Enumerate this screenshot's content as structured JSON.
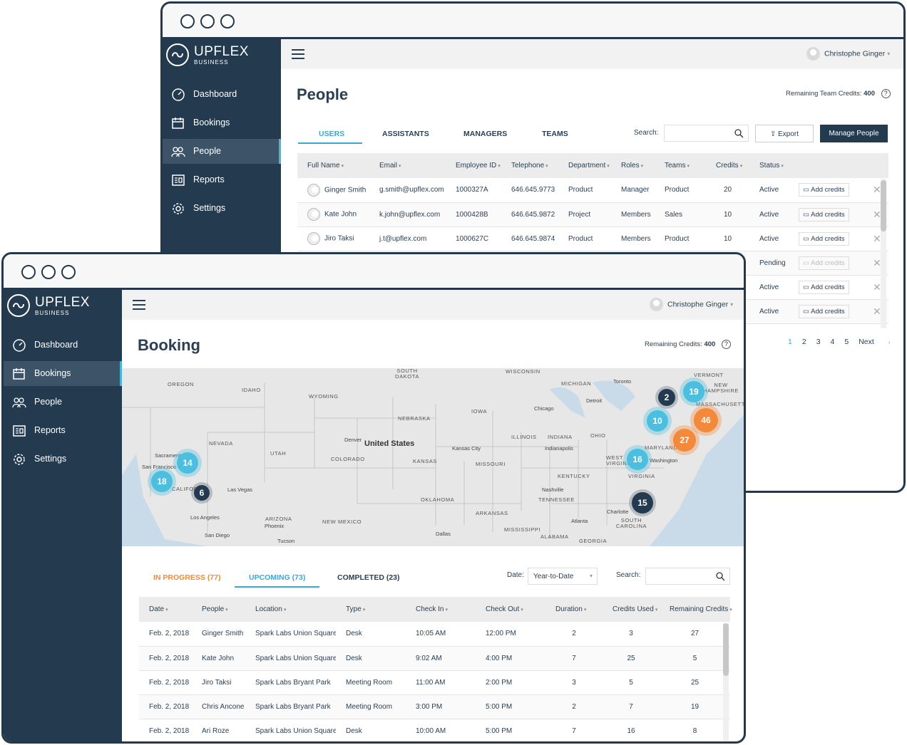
{
  "brand": {
    "name": "UPFLEX",
    "sub": "BUSINESS"
  },
  "nav": [
    {
      "label": "Dashboard",
      "icon": "dashboard-icon"
    },
    {
      "label": "Bookings",
      "icon": "calendar-icon"
    },
    {
      "label": "People",
      "icon": "people-icon"
    },
    {
      "label": "Reports",
      "icon": "reports-icon"
    },
    {
      "label": "Settings",
      "icon": "gear-icon"
    }
  ],
  "user": {
    "name": "Christophe Ginger"
  },
  "people_window": {
    "title": "People",
    "credits_label": "Remaining Team Credits:",
    "credits_value": "400",
    "tabs": [
      "USERS",
      "ASSISTANTS",
      "MANAGERS",
      "TEAMS"
    ],
    "search_label": "Search:",
    "export_label": "Export",
    "manage_label": "Manage People",
    "columns": [
      "Full Name",
      "Email",
      "Employee ID",
      "Telephone",
      "Department",
      "Roles",
      "Teams",
      "Credits",
      "Status"
    ],
    "add_credits_label": "Add credits",
    "rows": [
      {
        "name": "Ginger Smith",
        "email": "g.smith@upflex.com",
        "id": "1000327A",
        "phone": "646.645.9773",
        "dept": "Product",
        "role": "Manager",
        "team": "Product",
        "credits": "20",
        "status": "Active"
      },
      {
        "name": "Kate John",
        "email": "k.john@upflex.com",
        "id": "1000428B",
        "phone": "646.645.9872",
        "dept": "Project",
        "role": "Members",
        "team": "Sales",
        "credits": "10",
        "status": "Active"
      },
      {
        "name": "Jiro Taksi",
        "email": "j.t@upflex.com",
        "id": "1000627C",
        "phone": "646.645.9874",
        "dept": "Product",
        "role": "Members",
        "team": "Product",
        "credits": "10",
        "status": "Active"
      },
      {
        "status": "Pending"
      },
      {
        "status": "Active"
      },
      {
        "status": "Active"
      }
    ],
    "pages": [
      "1",
      "2",
      "3",
      "4",
      "5"
    ],
    "next_label": "Next"
  },
  "booking_window": {
    "title": "Booking",
    "credits_label": "Remaining Credits:",
    "credits_value": "400",
    "tabs": [
      "IN PROGRESS (77)",
      "UPCOMING (73)",
      "COMPLETED (23)"
    ],
    "date_label": "Date:",
    "date_value": "Year-to-Date",
    "search_label": "Search:",
    "columns": [
      "Date",
      "People",
      "Location",
      "Type",
      "Check In",
      "Check Out",
      "Duration",
      "Credits Used",
      "Remaining Credits"
    ],
    "rows": [
      {
        "date": "Feb. 2, 2018",
        "person": "Ginger Smith",
        "location": "Spark Labs Union Square",
        "type": "Desk",
        "in": "10:05 AM",
        "out": "12:00 PM",
        "duration": "2",
        "used": "3",
        "remaining": "27"
      },
      {
        "date": "Feb. 2, 2018",
        "person": "Kate John",
        "location": "Spark Labs Union Square",
        "type": "Desk",
        "in": "9:02 AM",
        "out": "4:00 PM",
        "duration": "7",
        "used": "25",
        "remaining": "5"
      },
      {
        "date": "Feb. 2, 2018",
        "person": "Jiro Taksi",
        "location": "Spark Labs Bryant Park",
        "type": "Meeting Room",
        "in": "11:00 AM",
        "out": "2:00 PM",
        "duration": "3",
        "used": "5",
        "remaining": "25"
      },
      {
        "date": "Feb. 2, 2018",
        "person": "Chris Ancone",
        "location": "Spark Labs Bryant Park",
        "type": "Meeting Room",
        "in": "3:00 PM",
        "out": "5:00 PM",
        "duration": "2",
        "used": "7",
        "remaining": "19"
      },
      {
        "date": "Feb. 2, 2018",
        "person": "Ari Roze",
        "location": "Spark Labs Union Square",
        "type": "Desk",
        "in": "10:00 AM",
        "out": "5:00 PM",
        "duration": "7",
        "used": "16",
        "remaining": "8"
      }
    ],
    "map": {
      "country_label": "United States",
      "state_labels": [
        "OREGON",
        "IDAHO",
        "WYOMING",
        "SOUTH DAKOTA",
        "NEBRASKA",
        "NEVADA",
        "UTAH",
        "COLORADO",
        "KANSAS",
        "IOWA",
        "MISSOURI",
        "OKLAHOMA",
        "ARKANSAS",
        "NEW MEXICO",
        "ARIZONA",
        "ILLINOIS",
        "INDIANA",
        "OHIO",
        "KENTUCKY",
        "TENNESSEE",
        "MISSISSIPPI",
        "ALABAMA",
        "GEORGIA",
        "WISCONSIN",
        "MICHIGAN",
        "VERMONT",
        "NEW HAMPSHIRE",
        "MASSACHUSETTS",
        "MARYLAND",
        "VIRGINIA",
        "WEST VIRGINIA",
        "SOUTH CAROLINA",
        "CALIFORNIA"
      ],
      "city_labels": [
        "Sacramento",
        "San Francisco",
        "Las Vegas",
        "Los Angeles",
        "San Diego",
        "Phoenix",
        "Tucson",
        "Denver",
        "Kansas City",
        "Dallas",
        "Chicago",
        "Detroit",
        "Toronto",
        "Indianapolis",
        "Nashville",
        "Atlanta",
        "Charlotte",
        "Washington"
      ],
      "clusters": [
        {
          "count": "14",
          "style": "blue"
        },
        {
          "count": "18",
          "style": "blue"
        },
        {
          "count": "6",
          "style": "dark"
        },
        {
          "count": "2",
          "style": "dark"
        },
        {
          "count": "19",
          "style": "blue"
        },
        {
          "count": "10",
          "style": "blue"
        },
        {
          "count": "46",
          "style": "orange"
        },
        {
          "count": "27",
          "style": "orange"
        },
        {
          "count": "16",
          "style": "blue"
        },
        {
          "count": "15",
          "style": "dark"
        }
      ]
    }
  },
  "colors": {
    "sidebar": "#243a4f",
    "accent": "#3aa8d0",
    "orange": "#f08a3a"
  }
}
